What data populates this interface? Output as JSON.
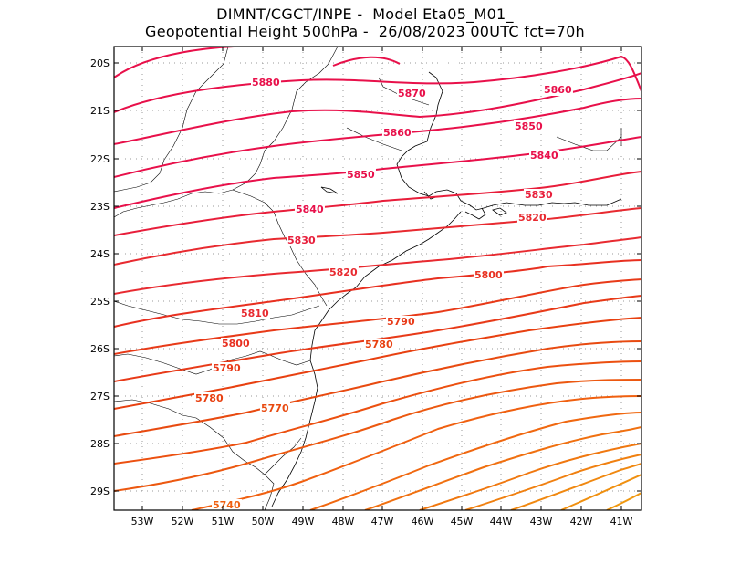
{
  "header": {
    "line1": "DIMNT/CGCT/INPE -  Model Eta05_M01_",
    "line2": "Geopotential Height 500hPa -  26/08/2023 00UTC fct=70h"
  },
  "axes": {
    "lat_labels": [
      "20S",
      "21S",
      "22S",
      "23S",
      "24S",
      "25S",
      "26S",
      "27S",
      "28S",
      "29S"
    ],
    "lon_labels": [
      "53W",
      "52W",
      "51W",
      "50W",
      "49W",
      "48W",
      "47W",
      "46W",
      "45W",
      "44W",
      "43W",
      "42W",
      "41W"
    ]
  },
  "contour_labels": [
    {
      "text": "5880",
      "color": "#e8104a"
    },
    {
      "text": "5870",
      "color": "#e8104a"
    },
    {
      "text": "5860",
      "color": "#e8104a"
    },
    {
      "text": "5860",
      "color": "#e8104a"
    },
    {
      "text": "5850",
      "color": "#e8104a"
    },
    {
      "text": "5850",
      "color": "#e8104a"
    },
    {
      "text": "5840",
      "color": "#e8104a"
    },
    {
      "text": "5840",
      "color": "#e8104a"
    },
    {
      "text": "5830",
      "color": "#e81d3a"
    },
    {
      "text": "5830",
      "color": "#e81d3a"
    },
    {
      "text": "5820",
      "color": "#e82a30"
    },
    {
      "text": "5820",
      "color": "#e82a30"
    },
    {
      "text": "5810",
      "color": "#e82a30"
    },
    {
      "text": "5800",
      "color": "#e83020"
    },
    {
      "text": "5800",
      "color": "#e83020"
    },
    {
      "text": "5790",
      "color": "#e83a18"
    },
    {
      "text": "5790",
      "color": "#e83a18"
    },
    {
      "text": "5780",
      "color": "#e84010"
    },
    {
      "text": "5780",
      "color": "#e84010"
    },
    {
      "text": "5770",
      "color": "#e84a10"
    },
    {
      "text": "5740",
      "color": "#f06010"
    }
  ],
  "chart_data": {
    "type": "contour-map",
    "variable": "Geopotential Height 500hPa",
    "contour_interval": 10,
    "lon_range": [
      -53.6,
      -40.5
    ],
    "lat_range": [
      -29.5,
      -19.6
    ],
    "contour_values": [
      5880,
      5870,
      5860,
      5850,
      5840,
      5830,
      5820,
      5810,
      5800,
      5790,
      5780,
      5770,
      5740
    ],
    "colors": {
      "high": "#e8104a",
      "mid": "#e83020",
      "low": "#f07010"
    },
    "grid": true
  }
}
